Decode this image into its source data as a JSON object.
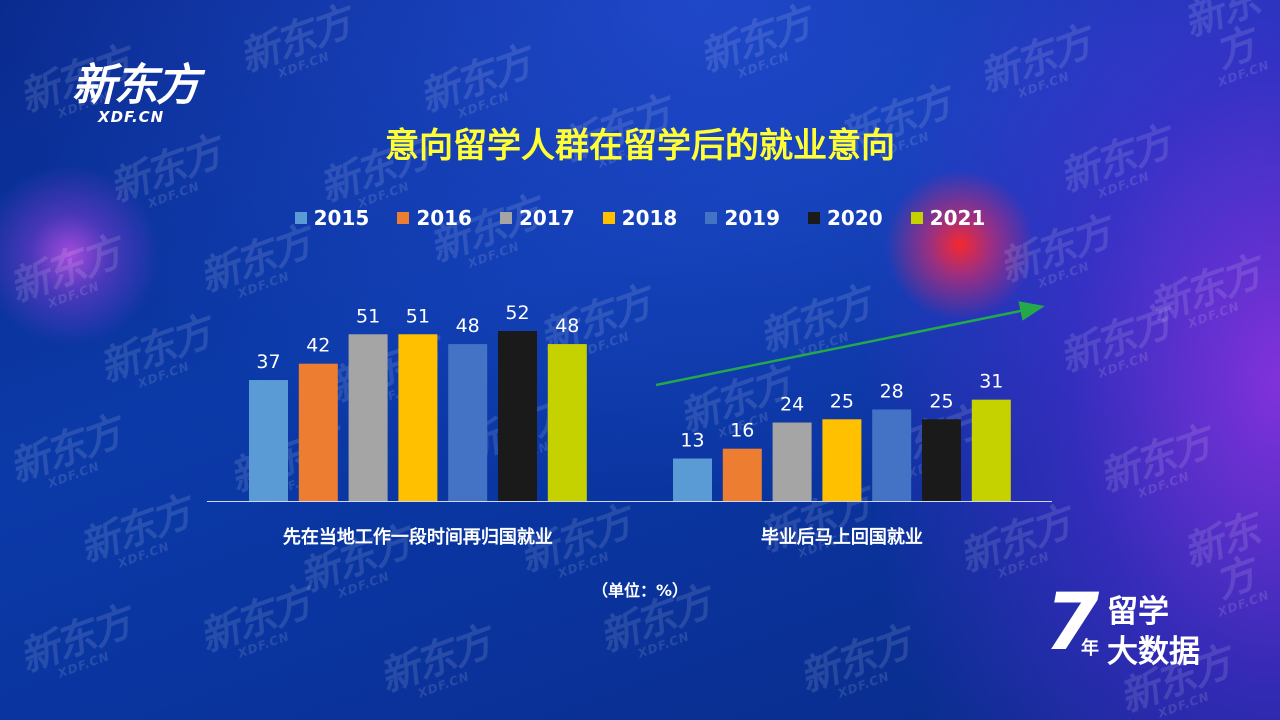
{
  "brand": {
    "logo_cn": "新东方",
    "logo_en": "XDF.CN"
  },
  "watermark": {
    "cn": "新东方",
    "en": "XDF.CN"
  },
  "badge": {
    "number": "7",
    "year": "年",
    "line1": "留学",
    "line2": "大数据"
  },
  "unit_label": "（单位：%）",
  "chart_data": {
    "type": "bar",
    "title": "意向留学人群在留学后的就业意向",
    "categories": [
      "先在当地工作一段时间再归国就业",
      "毕业后马上回国就业"
    ],
    "series": [
      {
        "name": "2015",
        "color": "#5b9bd5",
        "values": [
          37,
          13
        ]
      },
      {
        "name": "2016",
        "color": "#ed7d31",
        "values": [
          42,
          16
        ]
      },
      {
        "name": "2017",
        "color": "#a5a5a5",
        "values": [
          51,
          24
        ]
      },
      {
        "name": "2018",
        "color": "#ffc000",
        "values": [
          51,
          25
        ]
      },
      {
        "name": "2019",
        "color": "#4472c4",
        "values": [
          48,
          28
        ]
      },
      {
        "name": "2020",
        "color": "#1a1a1a",
        "values": [
          52,
          25
        ]
      },
      {
        "name": "2021",
        "color": "#c5d200",
        "values": [
          48,
          31
        ]
      }
    ],
    "ylim": [
      0,
      52
    ],
    "legend": "top",
    "trend_arrow_color": "#23a84a",
    "axis_color": "#cfd8f0",
    "label_color": "#ffffff",
    "title_color": "#ffff33"
  }
}
